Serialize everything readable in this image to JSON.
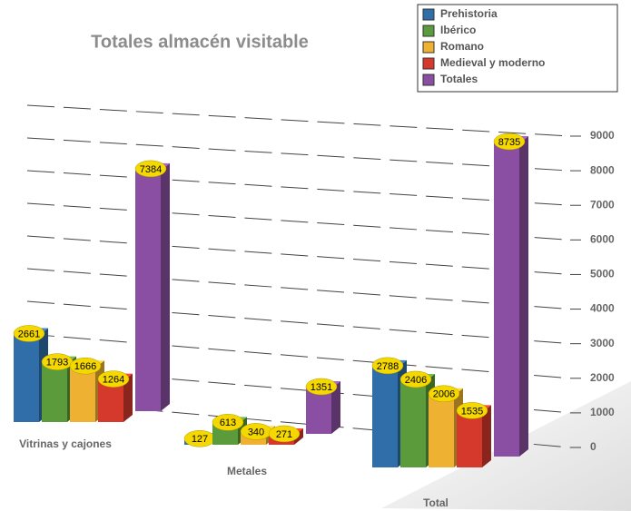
{
  "chart_data": {
    "type": "bar3d",
    "title": "Totales almacén visitable",
    "categories": [
      "Vitrinas y cajones",
      "Metales",
      "Total"
    ],
    "series": [
      {
        "name": "Prehistoria",
        "color": "#2f6ea8",
        "values": [
          2661,
          127,
          2788
        ]
      },
      {
        "name": "Ibérico",
        "color": "#5b9b3c",
        "values": [
          1793,
          613,
          2406
        ]
      },
      {
        "name": "Romano",
        "color": "#efb132",
        "values": [
          1666,
          340,
          2006
        ]
      },
      {
        "name": "Medieval y moderno",
        "color": "#d4392c",
        "values": [
          1264,
          271,
          1535
        ]
      },
      {
        "name": "Totales",
        "color": "#8a4fa2",
        "values": [
          7384,
          1351,
          8735
        ]
      }
    ],
    "ylim": [
      0,
      9000
    ],
    "yticks": [
      0,
      1000,
      2000,
      3000,
      4000,
      5000,
      6000,
      7000,
      8000,
      9000
    ],
    "grid": true,
    "legend": "upper right"
  }
}
